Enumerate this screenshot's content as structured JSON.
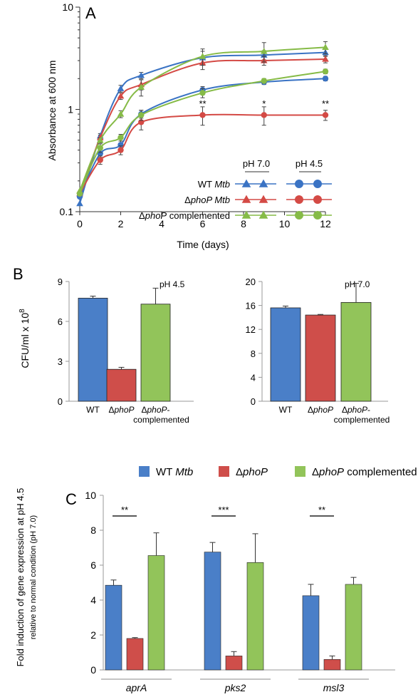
{
  "colors": {
    "wt": "#3a73c4",
    "phop": "#d44a45",
    "comp": "#86bb47",
    "wt_fill": "#4a7fc8",
    "phop_fill": "#cf4e4a",
    "comp_fill": "#92c45a"
  },
  "legend_a": {
    "ph70": "pH 7.0",
    "ph45": "pH 4.5",
    "rows": [
      {
        "pre": "WT ",
        "it": "Mtb",
        "post": ""
      },
      {
        "pre": "Δ",
        "it": "phoP Mtb",
        "post": ""
      },
      {
        "pre": "Δ",
        "it": "phoP",
        "post": " complemented"
      }
    ]
  },
  "legend_c": [
    {
      "pre": "WT ",
      "it": "Mtb",
      "post": ""
    },
    {
      "pre": "Δ",
      "it": "phoP",
      "post": ""
    },
    {
      "pre": "Δ",
      "it": "phoP",
      "post": " complemented"
    }
  ],
  "chart_data": [
    {
      "panel": "A",
      "type": "line",
      "ylabel": "Absorbance at 600 nm",
      "xlabel": "Time (days)",
      "yscale": "log",
      "ylim": [
        0.1,
        10
      ],
      "xlim": [
        0,
        12
      ],
      "y_ticks": [
        "0.1",
        "1",
        "10"
      ],
      "x_ticks": [
        0,
        2,
        4,
        6,
        8,
        10,
        12
      ],
      "annotations": [
        {
          "x": 6,
          "text": "**"
        },
        {
          "x": 9,
          "text": "*"
        },
        {
          "x": 12,
          "text": "**"
        }
      ],
      "series": [
        {
          "group": "wt",
          "marker": "triangle",
          "points": [
            [
              0,
              0.12
            ],
            [
              1,
              0.55
            ],
            [
              2,
              1.6
            ],
            [
              3,
              2.15
            ],
            [
              6,
              3.2
            ],
            [
              9,
              3.4
            ],
            [
              12,
              3.6
            ]
          ],
          "err": [
            0,
            0.03,
            0.12,
            0.15,
            0.5,
            0.35,
            0.3
          ]
        },
        {
          "group": "phop",
          "marker": "triangle",
          "points": [
            [
              0,
              0.15
            ],
            [
              1,
              0.53
            ],
            [
              2,
              1.35
            ],
            [
              3,
              1.75
            ],
            [
              6,
              2.85
            ],
            [
              9,
              3.0
            ],
            [
              12,
              3.1
            ]
          ],
          "err": [
            0,
            0.03,
            0.1,
            0.2,
            0.4,
            0.3,
            0.25
          ]
        },
        {
          "group": "comp",
          "marker": "triangle",
          "points": [
            [
              0,
              0.16
            ],
            [
              1,
              0.5
            ],
            [
              2,
              0.9
            ],
            [
              3,
              1.65
            ],
            [
              6,
              3.3
            ],
            [
              9,
              3.7
            ],
            [
              12,
              4.05
            ]
          ],
          "err": [
            0,
            0.03,
            0.07,
            0.3,
            0.6,
            0.8,
            0.55
          ]
        },
        {
          "group": "wt",
          "marker": "circle",
          "points": [
            [
              0,
              0.14
            ],
            [
              1,
              0.37
            ],
            [
              2,
              0.45
            ],
            [
              3,
              0.9
            ],
            [
              6,
              1.55
            ],
            [
              9,
              1.85
            ],
            [
              12,
              2.0
            ]
          ],
          "err": [
            0,
            0.03,
            0.04,
            0.08,
            0.12,
            0.1,
            0.1
          ]
        },
        {
          "group": "phop",
          "marker": "circle",
          "points": [
            [
              0,
              0.15
            ],
            [
              1,
              0.32
            ],
            [
              2,
              0.4
            ],
            [
              3,
              0.75
            ],
            [
              6,
              0.88
            ],
            [
              9,
              0.88
            ],
            [
              12,
              0.88
            ]
          ],
          "err": [
            0,
            0.03,
            0.04,
            0.12,
            0.18,
            0.18,
            0.1
          ]
        },
        {
          "group": "comp",
          "marker": "circle",
          "points": [
            [
              0,
              0.15
            ],
            [
              1,
              0.42
            ],
            [
              2,
              0.53
            ],
            [
              3,
              0.88
            ],
            [
              6,
              1.45
            ],
            [
              9,
              1.9
            ],
            [
              12,
              2.35
            ]
          ],
          "err": [
            0,
            0.04,
            0.04,
            0.1,
            0.15,
            0.1,
            0.12
          ]
        }
      ]
    },
    {
      "panel": "B",
      "type": "bar",
      "title": "pH 4.5",
      "ylabel": "CFU/ml x 10",
      "ylabel_sup": "8",
      "ylim": [
        0,
        9
      ],
      "y_ticks": [
        0,
        3,
        6,
        9
      ],
      "categories": [
        {
          "key": "wt",
          "label": "WT"
        },
        {
          "key": "phop",
          "label_pre": "Δ",
          "label_it": "phoP"
        },
        {
          "key": "comp",
          "label_pre": "Δ",
          "label_it": "phoP",
          "label_post": "-",
          "label_line2": "complemented"
        }
      ],
      "values": [
        7.75,
        2.4,
        7.3
      ],
      "err": [
        0.15,
        0.15,
        1.2
      ]
    },
    {
      "panel": "B",
      "type": "bar",
      "title": "pH 7.0",
      "ylim": [
        0,
        20
      ],
      "y_ticks": [
        0,
        4,
        8,
        12,
        16,
        20
      ],
      "categories": [
        {
          "key": "wt",
          "label": "WT"
        },
        {
          "key": "phop",
          "label_pre": "Δ",
          "label_it": "phoP"
        },
        {
          "key": "comp",
          "label_pre": "Δ",
          "label_it": "phoP",
          "label_post": "-",
          "label_line2": "complemented"
        }
      ],
      "values": [
        15.6,
        14.4,
        16.5
      ],
      "err": [
        0.3,
        0.1,
        3.2
      ]
    },
    {
      "panel": "C",
      "type": "bar",
      "ylabel": "Fold induction of gene expression at pH 4.5",
      "ylabel2": "relative to normal condition (pH 7.0)",
      "ylim": [
        0,
        10
      ],
      "y_ticks": [
        0,
        2,
        4,
        6,
        8,
        10
      ],
      "categories": [
        "aprA",
        "pks2",
        "msl3"
      ],
      "sig": [
        "**",
        "***",
        "**"
      ],
      "series": [
        {
          "key": "wt",
          "values": [
            4.85,
            6.75,
            4.25
          ],
          "err": [
            0.3,
            0.55,
            0.65
          ]
        },
        {
          "key": "phop",
          "values": [
            1.8,
            0.8,
            0.6
          ],
          "err": [
            0.05,
            0.25,
            0.2
          ]
        },
        {
          "key": "comp",
          "values": [
            6.55,
            6.15,
            4.9
          ],
          "err": [
            1.3,
            1.65,
            0.4
          ]
        }
      ]
    }
  ],
  "panel_labels": {
    "a": "A",
    "b": "B",
    "c": "C"
  }
}
